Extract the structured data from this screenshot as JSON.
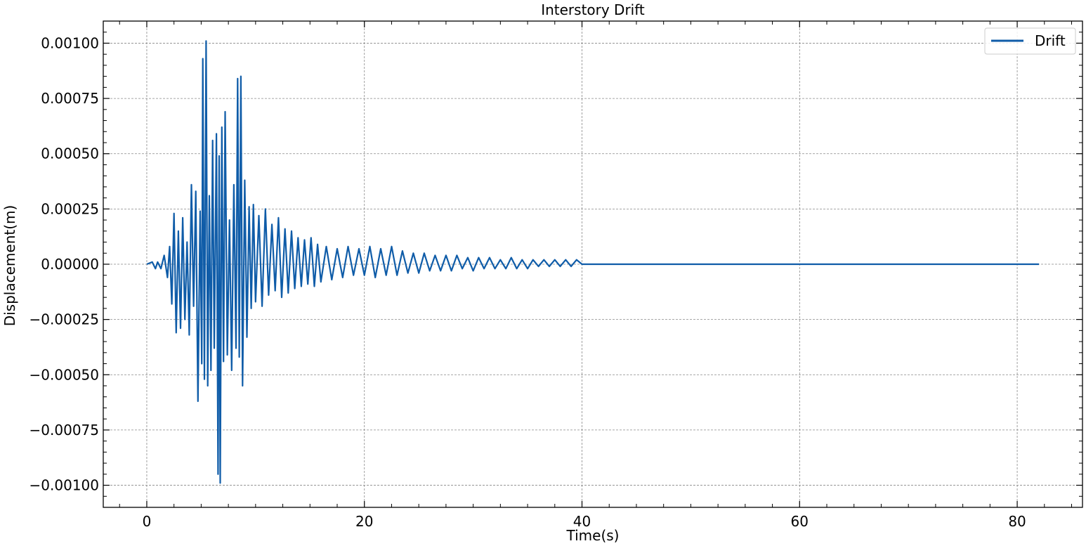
{
  "chart_data": {
    "type": "line",
    "title": "Interstory Drift",
    "xlabel": "Time(s)",
    "ylabel": "Displacement(m)",
    "xlim": [
      -4,
      86
    ],
    "ylim": [
      -0.0011,
      0.0011
    ],
    "x_ticks": [
      0,
      20,
      40,
      60,
      80
    ],
    "y_ticks": [
      0.001,
      0.00075,
      0.0005,
      0.00025,
      0.0,
      -0.00025,
      -0.0005,
      -0.00075,
      -0.001
    ],
    "x_tick_labels": [
      "0",
      "20",
      "40",
      "60",
      "80"
    ],
    "y_tick_labels": [
      "0.00100",
      "0.00075",
      "0.00050",
      "0.00025",
      "0.00000",
      "−0.00025",
      "−0.00050",
      "−0.00075",
      "−0.00100"
    ],
    "grid": true,
    "legend_position": "top-right",
    "series": [
      {
        "name": "Drift",
        "color": "#0f5ca8",
        "x": [
          0,
          0.5,
          0.8,
          1.0,
          1.3,
          1.6,
          1.9,
          2.1,
          2.3,
          2.5,
          2.7,
          2.9,
          3.1,
          3.3,
          3.5,
          3.7,
          3.9,
          4.1,
          4.3,
          4.5,
          4.7,
          4.9,
          5.05,
          5.15,
          5.3,
          5.45,
          5.6,
          5.75,
          5.9,
          6.05,
          6.2,
          6.4,
          6.55,
          6.65,
          6.75,
          6.9,
          7.05,
          7.2,
          7.4,
          7.6,
          7.8,
          8.0,
          8.2,
          8.35,
          8.5,
          8.65,
          8.8,
          9.0,
          9.2,
          9.4,
          9.6,
          9.8,
          10.0,
          10.3,
          10.6,
          10.9,
          11.2,
          11.5,
          11.8,
          12.1,
          12.4,
          12.7,
          13.0,
          13.3,
          13.6,
          13.9,
          14.2,
          14.5,
          14.8,
          15.1,
          15.4,
          15.7,
          16.0,
          16.5,
          17.0,
          17.5,
          18.0,
          18.5,
          19.0,
          19.5,
          20.0,
          20.5,
          21.0,
          21.5,
          22.0,
          22.5,
          23.0,
          23.5,
          24.0,
          24.5,
          25.0,
          25.5,
          26.0,
          26.5,
          27.0,
          27.5,
          28.0,
          28.5,
          29.0,
          29.5,
          30.0,
          30.5,
          31.0,
          31.5,
          32.0,
          32.5,
          33.0,
          33.5,
          34.0,
          34.5,
          35.0,
          35.5,
          36.0,
          36.5,
          37.0,
          37.5,
          38.0,
          38.5,
          39.0,
          39.5,
          40.0,
          40.5,
          41.0,
          50.0,
          60.0,
          70.0,
          82.0
        ],
        "y": [
          0,
          1e-05,
          -2e-05,
          1e-05,
          -2e-05,
          4e-05,
          -6e-05,
          8e-05,
          -0.00018,
          0.00023,
          -0.00031,
          0.00015,
          -0.00029,
          0.00021,
          -0.00025,
          0.0001,
          -0.00032,
          0.00036,
          -0.00019,
          0.00033,
          -0.00062,
          0.00024,
          -0.00045,
          0.00093,
          -0.00052,
          0.00101,
          -0.00055,
          0.00031,
          -0.00048,
          0.00056,
          -0.00038,
          0.00059,
          -0.00095,
          0.00049,
          -0.00099,
          0.00062,
          -0.00044,
          0.00069,
          -0.00041,
          0.0002,
          -0.00048,
          0.00036,
          -0.00038,
          0.00084,
          -0.00042,
          0.00085,
          -0.00055,
          0.00038,
          -0.00033,
          0.00026,
          -0.0002,
          0.00027,
          -0.00017,
          0.00022,
          -0.00019,
          0.00025,
          -0.00014,
          0.00018,
          -0.00012,
          0.00021,
          -0.00015,
          0.00016,
          -0.00013,
          0.00015,
          -0.00011,
          0.00012,
          -0.0001,
          0.00011,
          -9e-05,
          0.00012,
          -0.0001,
          9e-05,
          -8e-05,
          8e-05,
          -7e-05,
          7e-05,
          -6e-05,
          8e-05,
          -5e-05,
          7e-05,
          -5e-05,
          8e-05,
          -6e-05,
          7e-05,
          -5e-05,
          8e-05,
          -5e-05,
          6e-05,
          -4e-05,
          5e-05,
          -4e-05,
          5e-05,
          -3e-05,
          4e-05,
          -3e-05,
          4e-05,
          -3e-05,
          4e-05,
          -2e-05,
          3e-05,
          -3e-05,
          3e-05,
          -2e-05,
          3e-05,
          -2e-05,
          2e-05,
          -2e-05,
          3e-05,
          -2e-05,
          2e-05,
          -2e-05,
          2e-05,
          -1e-05,
          2e-05,
          -1e-05,
          2e-05,
          -1e-05,
          2e-05,
          -1e-05,
          2e-05,
          0.0,
          0.0,
          0.0,
          0.0,
          0.0,
          0.0,
          0.0
        ]
      }
    ]
  }
}
